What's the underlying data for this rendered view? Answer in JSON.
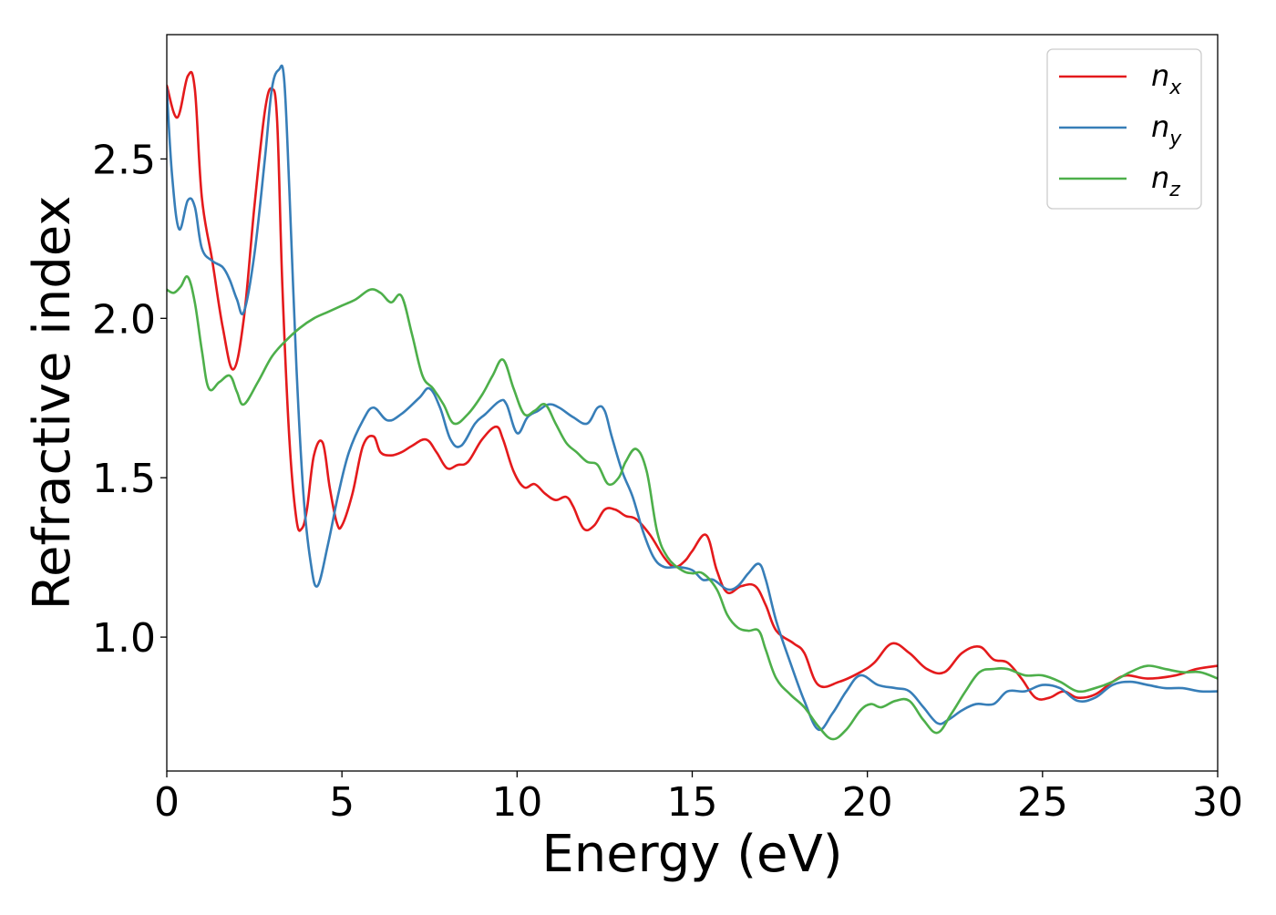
{
  "chart_data": {
    "type": "line",
    "xlabel": "Energy (eV)",
    "ylabel": "Refractive index",
    "xlim": [
      0,
      30
    ],
    "ylim": [
      0.58,
      2.89
    ],
    "xticks": [
      0,
      5,
      10,
      15,
      20,
      25,
      30
    ],
    "xtick_labels": [
      "0",
      "5",
      "10",
      "15",
      "20",
      "25",
      "30"
    ],
    "yticks": [
      1.0,
      1.5,
      2.0,
      2.5
    ],
    "ytick_labels": [
      "1.0",
      "1.5",
      "2.0",
      "2.5"
    ],
    "grid": false,
    "legend_position": "top-right",
    "series": [
      {
        "name": "n",
        "name_subscript": "x",
        "color": "#e41a1c",
        "x": [
          0,
          0.3,
          0.6,
          0.8,
          1.0,
          1.3,
          1.6,
          1.9,
          2.2,
          2.5,
          2.8,
          3.0,
          3.15,
          3.3,
          3.5,
          3.7,
          3.85,
          4.0,
          4.2,
          4.45,
          4.65,
          4.85,
          5.0,
          5.3,
          5.6,
          5.9,
          6.1,
          6.4,
          6.7,
          7.0,
          7.4,
          7.7,
          8.0,
          8.3,
          8.6,
          9.0,
          9.4,
          9.6,
          9.9,
          10.2,
          10.5,
          10.8,
          11.1,
          11.4,
          11.6,
          11.9,
          12.2,
          12.5,
          12.8,
          13.1,
          13.4,
          13.8,
          14.2,
          14.5,
          14.8,
          15.0,
          15.4,
          15.7,
          16.0,
          16.4,
          16.8,
          17.1,
          17.4,
          17.9,
          18.2,
          18.6,
          19.2,
          19.8,
          20.2,
          20.7,
          21.2,
          21.7,
          22.2,
          22.7,
          23.2,
          23.6,
          24.0,
          24.4,
          24.8,
          25.2,
          25.6,
          26.0,
          26.5,
          27.0,
          27.4,
          28.0,
          28.8,
          29.4,
          30.0
        ],
        "values": [
          2.73,
          2.63,
          2.76,
          2.72,
          2.38,
          2.18,
          1.97,
          1.84,
          2.0,
          2.35,
          2.65,
          2.72,
          2.62,
          2.1,
          1.62,
          1.37,
          1.34,
          1.4,
          1.57,
          1.61,
          1.47,
          1.36,
          1.35,
          1.45,
          1.6,
          1.63,
          1.58,
          1.57,
          1.58,
          1.6,
          1.62,
          1.58,
          1.53,
          1.54,
          1.55,
          1.62,
          1.66,
          1.62,
          1.52,
          1.47,
          1.48,
          1.45,
          1.43,
          1.44,
          1.41,
          1.34,
          1.35,
          1.4,
          1.4,
          1.38,
          1.37,
          1.32,
          1.25,
          1.22,
          1.24,
          1.27,
          1.32,
          1.21,
          1.14,
          1.16,
          1.16,
          1.1,
          1.02,
          0.98,
          0.95,
          0.85,
          0.86,
          0.89,
          0.92,
          0.98,
          0.95,
          0.9,
          0.89,
          0.95,
          0.97,
          0.93,
          0.92,
          0.87,
          0.81,
          0.81,
          0.83,
          0.81,
          0.82,
          0.86,
          0.88,
          0.87,
          0.88,
          0.9,
          0.91
        ]
      },
      {
        "name": "n",
        "name_subscript": "y",
        "color": "#377eb8",
        "x": [
          0,
          0.15,
          0.35,
          0.6,
          0.8,
          1.0,
          1.3,
          1.6,
          1.8,
          2.0,
          2.2,
          2.5,
          2.8,
          3.0,
          3.2,
          3.35,
          3.5,
          3.7,
          3.9,
          4.1,
          4.3,
          4.6,
          4.9,
          5.2,
          5.6,
          5.9,
          6.3,
          6.7,
          7.2,
          7.5,
          7.8,
          8.1,
          8.4,
          8.8,
          9.1,
          9.5,
          9.7,
          10.0,
          10.3,
          10.6,
          10.9,
          11.2,
          11.6,
          12.0,
          12.3,
          12.5,
          12.7,
          13.0,
          13.3,
          13.6,
          13.9,
          14.2,
          14.6,
          15.0,
          15.3,
          15.6,
          16.0,
          16.3,
          16.6,
          16.9,
          17.1,
          17.4,
          17.8,
          18.2,
          18.6,
          19.0,
          19.4,
          19.8,
          20.3,
          20.8,
          21.2,
          21.6,
          22.0,
          22.3,
          22.7,
          23.1,
          23.6,
          24.0,
          24.5,
          25.0,
          25.5,
          26.0,
          26.5,
          27.0,
          27.5,
          28.0,
          28.5,
          29.0,
          29.5,
          30.0
        ],
        "values": [
          2.72,
          2.45,
          2.28,
          2.37,
          2.35,
          2.22,
          2.18,
          2.16,
          2.12,
          2.06,
          2.02,
          2.2,
          2.5,
          2.72,
          2.78,
          2.75,
          2.4,
          1.85,
          1.45,
          1.24,
          1.16,
          1.29,
          1.45,
          1.58,
          1.68,
          1.72,
          1.68,
          1.7,
          1.75,
          1.78,
          1.72,
          1.62,
          1.6,
          1.67,
          1.7,
          1.74,
          1.73,
          1.64,
          1.69,
          1.71,
          1.73,
          1.72,
          1.69,
          1.67,
          1.72,
          1.71,
          1.63,
          1.52,
          1.44,
          1.33,
          1.25,
          1.22,
          1.22,
          1.21,
          1.18,
          1.18,
          1.15,
          1.16,
          1.2,
          1.23,
          1.18,
          1.05,
          0.92,
          0.8,
          0.71,
          0.76,
          0.83,
          0.88,
          0.85,
          0.84,
          0.83,
          0.78,
          0.73,
          0.74,
          0.77,
          0.79,
          0.79,
          0.83,
          0.83,
          0.85,
          0.84,
          0.8,
          0.81,
          0.85,
          0.86,
          0.85,
          0.84,
          0.84,
          0.83,
          0.83
        ]
      },
      {
        "name": "n",
        "name_subscript": "z",
        "color": "#4daf4a",
        "x": [
          0,
          0.2,
          0.4,
          0.6,
          0.8,
          1.0,
          1.2,
          1.5,
          1.8,
          2.0,
          2.2,
          2.6,
          3.0,
          3.4,
          3.8,
          4.2,
          4.6,
          5.0,
          5.4,
          5.8,
          6.1,
          6.4,
          6.7,
          7.0,
          7.3,
          7.6,
          7.9,
          8.2,
          8.6,
          9.0,
          9.3,
          9.6,
          9.9,
          10.2,
          10.5,
          10.8,
          11.1,
          11.4,
          11.7,
          12.0,
          12.3,
          12.6,
          12.9,
          13.1,
          13.4,
          13.7,
          14.0,
          14.3,
          14.7,
          15.0,
          15.3,
          15.7,
          16.0,
          16.3,
          16.6,
          16.9,
          17.1,
          17.4,
          17.8,
          18.2,
          18.6,
          19.0,
          19.4,
          19.8,
          20.1,
          20.4,
          20.8,
          21.2,
          21.6,
          22.0,
          22.4,
          22.8,
          23.2,
          23.6,
          24.0,
          24.5,
          25.0,
          25.5,
          26.0,
          26.5,
          27.0,
          27.5,
          28.0,
          28.5,
          29.0,
          29.5,
          30.0
        ],
        "values": [
          2.09,
          2.08,
          2.1,
          2.13,
          2.05,
          1.9,
          1.78,
          1.8,
          1.82,
          1.77,
          1.73,
          1.8,
          1.88,
          1.93,
          1.97,
          2.0,
          2.02,
          2.04,
          2.06,
          2.09,
          2.08,
          2.05,
          2.07,
          1.95,
          1.82,
          1.78,
          1.73,
          1.67,
          1.7,
          1.76,
          1.82,
          1.87,
          1.78,
          1.7,
          1.71,
          1.73,
          1.67,
          1.61,
          1.58,
          1.55,
          1.54,
          1.48,
          1.5,
          1.55,
          1.59,
          1.52,
          1.33,
          1.25,
          1.21,
          1.2,
          1.2,
          1.15,
          1.07,
          1.03,
          1.02,
          1.02,
          0.96,
          0.87,
          0.82,
          0.78,
          0.72,
          0.68,
          0.71,
          0.77,
          0.79,
          0.78,
          0.8,
          0.8,
          0.74,
          0.7,
          0.76,
          0.83,
          0.89,
          0.9,
          0.9,
          0.88,
          0.88,
          0.86,
          0.83,
          0.84,
          0.86,
          0.89,
          0.91,
          0.9,
          0.89,
          0.89,
          0.87
        ]
      }
    ]
  }
}
